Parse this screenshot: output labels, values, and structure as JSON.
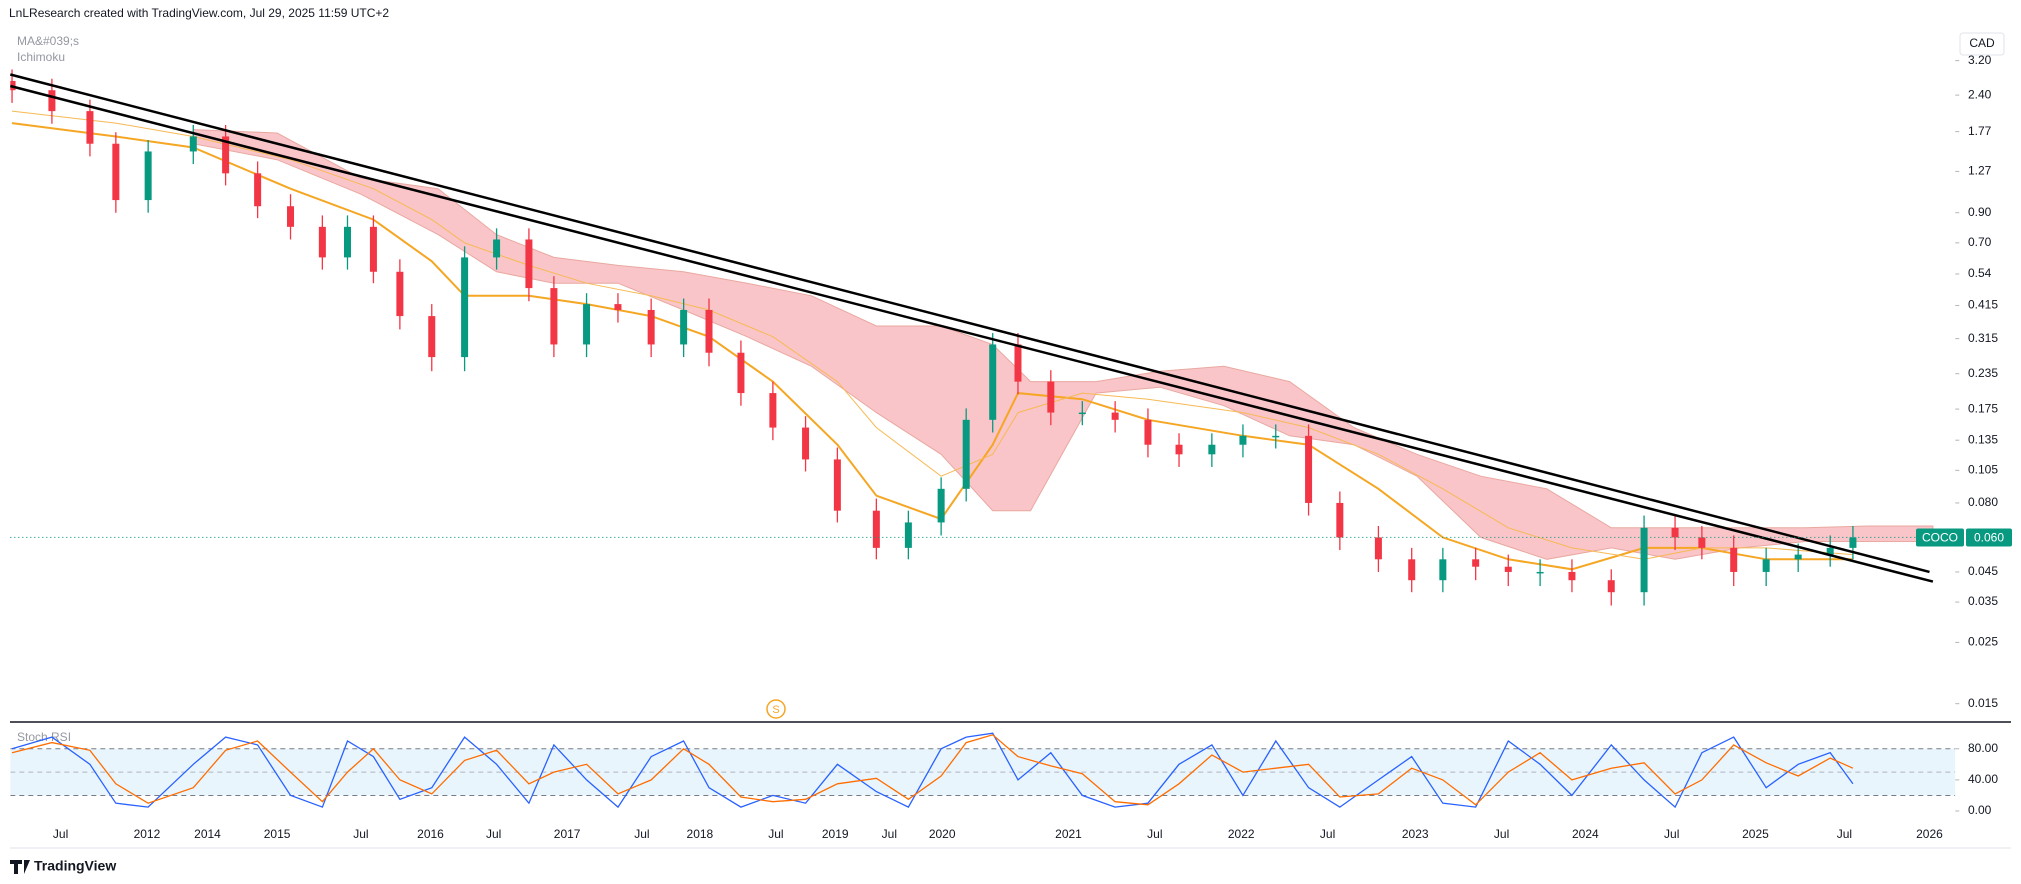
{
  "header": {
    "title": "LnLResearch created with TradingView.com, Jul 29, 2025 11:59 UTC+2",
    "currency": "CAD"
  },
  "footer": {
    "brand": "TradingView"
  },
  "chart_data": [
    {
      "type": "candlestick",
      "symbol": "COCO",
      "indicator_labels": [
        "MA&#039;s",
        "Ichimoku"
      ],
      "event_marker": "S",
      "log_scale": true,
      "grid": false,
      "up_color": "#089981",
      "down_color": "#f23645",
      "x": [
        2011.22,
        2011.45,
        2011.67,
        2011.82,
        2012.04,
        2013.53,
        2014.26,
        2014.72,
        2015.08,
        2015.27,
        2015.42,
        2015.59,
        2015.78,
        2016.01,
        2016.27,
        2016.52,
        2016.74,
        2016.91,
        2017.13,
        2017.34,
        2017.58,
        2017.86,
        2018.06,
        2018.27,
        2018.48,
        2018.75,
        2019.02,
        2019.38,
        2019.68,
        2019.99,
        2020.19,
        2020.4,
        2020.6,
        2020.86,
        2021.08,
        2021.27,
        2021.46,
        2021.64,
        2021.83,
        2022.01,
        2022.2,
        2022.39,
        2022.57,
        2022.79,
        2022.98,
        2023.16,
        2023.35,
        2023.54,
        2023.73,
        2023.92,
        2024.15,
        2024.34,
        2024.52,
        2024.68,
        2024.87,
        2025.06,
        2025.24,
        2025.42,
        2025.55
      ],
      "open": [
        2.7,
        2.5,
        2.1,
        1.6,
        1.0,
        1.5,
        1.7,
        1.25,
        0.95,
        0.8,
        0.62,
        0.8,
        0.55,
        0.38,
        0.27,
        0.62,
        0.72,
        0.48,
        0.3,
        0.42,
        0.4,
        0.3,
        0.4,
        0.28,
        0.2,
        0.15,
        0.115,
        0.075,
        0.055,
        0.068,
        0.09,
        0.16,
        0.3,
        0.22,
        0.17,
        0.17,
        0.16,
        0.13,
        0.12,
        0.13,
        0.14,
        0.14,
        0.08,
        0.06,
        0.05,
        0.042,
        0.05,
        0.047,
        0.045,
        0.045,
        0.042,
        0.038,
        0.065,
        0.06,
        0.055,
        0.045,
        0.05,
        0.052,
        0.055
      ],
      "high": [
        2.97,
        2.75,
        2.31,
        1.76,
        1.65,
        1.87,
        1.87,
        1.38,
        1.05,
        0.88,
        0.88,
        0.88,
        0.61,
        0.42,
        0.68,
        0.79,
        0.79,
        0.53,
        0.46,
        0.46,
        0.44,
        0.44,
        0.44,
        0.31,
        0.22,
        0.165,
        0.127,
        0.083,
        0.075,
        0.099,
        0.176,
        0.33,
        0.33,
        0.242,
        0.187,
        0.187,
        0.176,
        0.143,
        0.143,
        0.154,
        0.154,
        0.154,
        0.088,
        0.066,
        0.055,
        0.055,
        0.055,
        0.052,
        0.05,
        0.05,
        0.046,
        0.072,
        0.072,
        0.066,
        0.061,
        0.055,
        0.057,
        0.061,
        0.066
      ],
      "low": [
        2.25,
        1.89,
        1.44,
        0.9,
        0.9,
        1.35,
        1.13,
        0.86,
        0.72,
        0.56,
        0.56,
        0.5,
        0.34,
        0.24,
        0.24,
        0.56,
        0.43,
        0.27,
        0.27,
        0.36,
        0.27,
        0.27,
        0.25,
        0.18,
        0.135,
        0.104,
        0.068,
        0.05,
        0.05,
        0.061,
        0.081,
        0.144,
        0.198,
        0.153,
        0.153,
        0.144,
        0.117,
        0.108,
        0.108,
        0.117,
        0.126,
        0.072,
        0.054,
        0.045,
        0.038,
        0.038,
        0.042,
        0.04,
        0.04,
        0.038,
        0.034,
        0.034,
        0.054,
        0.05,
        0.04,
        0.04,
        0.045,
        0.047,
        0.05
      ],
      "close": [
        2.5,
        2.1,
        1.6,
        1.0,
        1.5,
        1.7,
        1.25,
        0.95,
        0.8,
        0.62,
        0.8,
        0.55,
        0.38,
        0.27,
        0.62,
        0.72,
        0.48,
        0.3,
        0.42,
        0.4,
        0.3,
        0.4,
        0.28,
        0.2,
        0.15,
        0.115,
        0.075,
        0.055,
        0.068,
        0.09,
        0.16,
        0.3,
        0.22,
        0.17,
        0.17,
        0.16,
        0.13,
        0.12,
        0.13,
        0.14,
        0.14,
        0.08,
        0.06,
        0.05,
        0.042,
        0.05,
        0.047,
        0.045,
        0.045,
        0.042,
        0.038,
        0.065,
        0.06,
        0.055,
        0.045,
        0.05,
        0.052,
        0.055,
        0.06
      ],
      "series": [
        {
          "color": "#f5a623",
          "width": 2,
          "x": [
            2011.22,
            2011.82,
            2013.53,
            2015.08,
            2015.59,
            2016.01,
            2016.27,
            2016.74,
            2017.13,
            2017.58,
            2018.06,
            2018.48,
            2019.02,
            2019.38,
            2019.99,
            2020.4,
            2020.6,
            2021.08,
            2021.46,
            2022.01,
            2022.39,
            2022.79,
            2023.16,
            2023.54,
            2023.92,
            2024.34,
            2024.68,
            2025.06,
            2025.55
          ],
          "values": [
            1.9,
            1.7,
            1.55,
            1.1,
            0.85,
            0.6,
            0.45,
            0.45,
            0.42,
            0.38,
            0.32,
            0.22,
            0.13,
            0.085,
            0.07,
            0.13,
            0.2,
            0.19,
            0.16,
            0.14,
            0.13,
            0.09,
            0.06,
            0.05,
            0.046,
            0.055,
            0.055,
            0.05,
            0.05
          ]
        },
        {
          "color": "#f7b955",
          "width": 1,
          "x": [
            2011.22,
            2011.82,
            2013.53,
            2015.08,
            2015.59,
            2016.01,
            2016.27,
            2016.74,
            2017.13,
            2017.58,
            2018.06,
            2018.48,
            2019.02,
            2019.38,
            2019.99,
            2020.4,
            2020.6,
            2021.08,
            2021.46,
            2022.01,
            2022.39,
            2022.79,
            2023.16,
            2023.54,
            2023.92,
            2024.34,
            2024.68,
            2025.06,
            2025.55
          ],
          "values": [
            2.1,
            1.9,
            1.7,
            1.4,
            1.1,
            0.85,
            0.7,
            0.58,
            0.5,
            0.45,
            0.4,
            0.32,
            0.22,
            0.15,
            0.1,
            0.12,
            0.17,
            0.2,
            0.19,
            0.17,
            0.15,
            0.12,
            0.09,
            0.065,
            0.055,
            0.05,
            0.055,
            0.055,
            0.052
          ]
        }
      ],
      "cloud": {
        "color": "#f8b6ba",
        "x": [
          2013.53,
          2015.0,
          2015.5,
          2016.06,
          2016.52,
          2016.91,
          2017.34,
          2017.86,
          2018.31,
          2018.8,
          2019.38,
          2019.99,
          2020.4,
          2020.7,
          2021.16,
          2021.53,
          2021.9,
          2022.28,
          2022.65,
          2023.01,
          2023.38,
          2023.77,
          2024.15,
          2024.52,
          2024.91,
          2025.28,
          2025.64,
          2026.02
        ],
        "span_a": [
          1.8,
          1.75,
          1.2,
          1.1,
          0.75,
          0.62,
          0.58,
          0.55,
          0.5,
          0.45,
          0.35,
          0.35,
          0.3,
          0.22,
          0.22,
          0.24,
          0.25,
          0.22,
          0.15,
          0.12,
          0.1,
          0.09,
          0.065,
          0.065,
          0.065,
          0.065,
          0.066,
          0.066
        ],
        "span_b": [
          1.6,
          1.4,
          1.05,
          0.75,
          0.55,
          0.5,
          0.5,
          0.4,
          0.32,
          0.25,
          0.17,
          0.12,
          0.075,
          0.075,
          0.2,
          0.21,
          0.18,
          0.14,
          0.13,
          0.1,
          0.06,
          0.05,
          0.055,
          0.05,
          0.055,
          0.058,
          0.058,
          0.058
        ]
      },
      "trendlines": [
        {
          "color": "#000000",
          "x": [
            2011.21,
            2026.0
          ],
          "values": [
            2.85,
            0.045
          ]
        },
        {
          "color": "#000000",
          "x": [
            2011.21,
            2026.02
          ],
          "values": [
            2.59,
            0.0415
          ]
        }
      ],
      "last_price": {
        "value": 0.06,
        "label": "0.060"
      },
      "last_color": "#089981",
      "xlim": [
        2011.21,
        2026.15
      ],
      "xticks": [
        {
          "value": 2011.5,
          "label": "Jul"
        },
        2012,
        2014,
        2015,
        {
          "value": 2015.5,
          "label": "Jul"
        },
        2016,
        {
          "value": 2016.5,
          "label": "Jul"
        },
        2017,
        {
          "value": 2017.5,
          "label": "Jul"
        },
        2018,
        {
          "value": 2018.5,
          "label": "Jul"
        },
        2019,
        {
          "value": 2019.5,
          "label": "Jul"
        },
        2020,
        2021,
        {
          "value": 2021.5,
          "label": "Jul"
        },
        2022,
        {
          "value": 2022.5,
          "label": "Jul"
        },
        2023,
        {
          "value": 2023.5,
          "label": "Jul"
        },
        2024,
        {
          "value": 2024.5,
          "label": "Jul"
        },
        2025,
        {
          "value": 2025.5,
          "label": "Jul"
        },
        2026
      ],
      "ylim": [
        0.0132,
        4.2
      ],
      "yticks": [
        {
          "value": 3.2,
          "label": "3.20"
        },
        {
          "value": 2.4,
          "label": "2.40"
        },
        1.77,
        1.27,
        {
          "value": 0.9,
          "label": "0.90"
        },
        {
          "value": 0.7,
          "label": "0.70"
        },
        0.54,
        0.415,
        0.315,
        0.235,
        0.175,
        0.135,
        0.105,
        {
          "value": 0.08,
          "label": "0.080"
        },
        0.045,
        0.035,
        0.025,
        0.015
      ]
    },
    {
      "type": "line",
      "title": "Stoch RSI",
      "band": [
        20,
        80
      ],
      "midline": 50,
      "band_color": "#e3f2fd",
      "x": [
        2011.22,
        2011.45,
        2011.67,
        2011.82,
        2012.04,
        2013.53,
        2014.26,
        2014.72,
        2015.08,
        2015.27,
        2015.42,
        2015.59,
        2015.78,
        2016.01,
        2016.27,
        2016.52,
        2016.74,
        2016.91,
        2017.13,
        2017.34,
        2017.58,
        2017.86,
        2018.06,
        2018.27,
        2018.48,
        2018.75,
        2019.02,
        2019.38,
        2019.68,
        2019.99,
        2020.19,
        2020.4,
        2020.6,
        2020.86,
        2021.08,
        2021.27,
        2021.46,
        2021.64,
        2021.83,
        2022.01,
        2022.2,
        2022.39,
        2022.57,
        2022.79,
        2022.98,
        2023.16,
        2023.35,
        2023.54,
        2023.73,
        2023.92,
        2024.15,
        2024.34,
        2024.52,
        2024.68,
        2024.87,
        2025.06,
        2025.24,
        2025.42,
        2025.55
      ],
      "series": [
        {
          "color": "#2962ff",
          "values": [
            80,
            95,
            60,
            10,
            5,
            60,
            95,
            85,
            20,
            5,
            90,
            70,
            15,
            30,
            95,
            60,
            10,
            85,
            40,
            5,
            70,
            90,
            30,
            5,
            20,
            10,
            60,
            25,
            5,
            80,
            95,
            100,
            40,
            75,
            20,
            5,
            10,
            60,
            85,
            20,
            90,
            30,
            5,
            40,
            70,
            10,
            5,
            90,
            60,
            20,
            85,
            40,
            5,
            75,
            95,
            30,
            60,
            75,
            35
          ]
        },
        {
          "color": "#ff6d00",
          "values": [
            75,
            88,
            78,
            35,
            10,
            30,
            78,
            90,
            50,
            12,
            50,
            80,
            40,
            22,
            65,
            78,
            35,
            50,
            60,
            22,
            40,
            80,
            60,
            18,
            12,
            15,
            35,
            42,
            15,
            45,
            88,
            98,
            70,
            58,
            48,
            12,
            8,
            35,
            72,
            50,
            55,
            60,
            18,
            22,
            55,
            40,
            8,
            50,
            75,
            40,
            55,
            62,
            22,
            40,
            85,
            62,
            45,
            68,
            55
          ]
        }
      ],
      "xlim": [
        2011.21,
        2026.15
      ],
      "ylim": [
        -18,
        108
      ],
      "yticks": [
        {
          "value": 80,
          "label": "80.00"
        },
        {
          "value": 40,
          "label": "40.00"
        },
        {
          "value": 0,
          "label": "0.00"
        }
      ]
    }
  ]
}
